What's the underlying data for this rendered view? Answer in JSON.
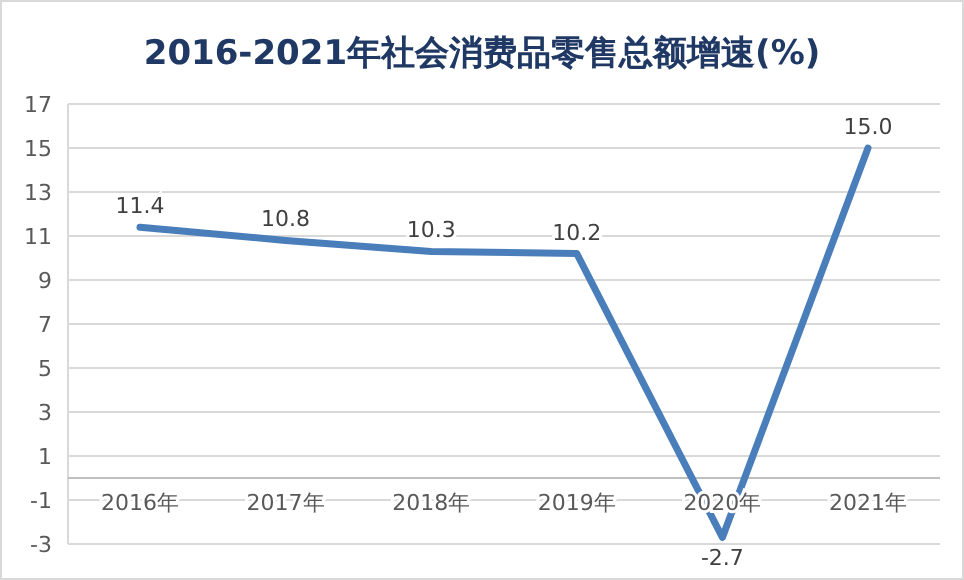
{
  "chart_data": {
    "type": "line",
    "title": "2016-2021年社会消费品零售总额增速(%)",
    "categories": [
      "2016年",
      "2017年",
      "2018年",
      "2019年",
      "2020年",
      "2021年"
    ],
    "series": [
      {
        "color": "#4a7ebb",
        "values": [
          11.4,
          10.8,
          10.3,
          10.2,
          -2.7,
          15.0
        ],
        "value_labels": [
          "11.4",
          "10.8",
          "10.3",
          "10.2",
          "-2.7",
          "15.0"
        ]
      }
    ],
    "ylim": [
      -3,
      17
    ],
    "yticks": [
      -3,
      -1,
      1,
      3,
      5,
      7,
      9,
      11,
      13,
      15,
      17
    ],
    "grid": "y",
    "marker": "none",
    "line_style": "solid"
  }
}
